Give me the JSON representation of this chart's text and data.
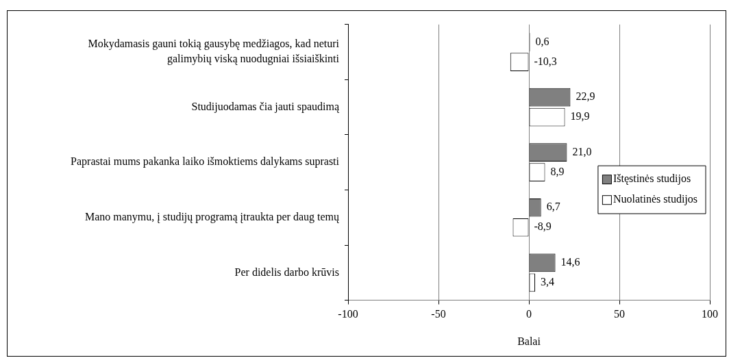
{
  "chart_data": {
    "type": "bar",
    "orientation": "horizontal",
    "xlabel": "Balai",
    "categories": [
      "Mokydamasis gauni tokią gausybę medžiagos, kad neturi galimybių viską nuodugniai išsiaiškinti",
      "Studijuodamas čia jauti spaudimą",
      "Paprastai mums pakanka laiko išmoktiems dalykams suprasti",
      "Mano manymu, į studijų programą įtraukta per daug temų",
      "Per didelis darbo krūvis"
    ],
    "series": [
      {
        "name": "Ištęstinės studijos",
        "color": "#808080",
        "values": [
          0.6,
          22.9,
          21.0,
          6.7,
          14.6
        ],
        "value_labels": [
          "0,6",
          "22,9",
          "21,0",
          "6,7",
          "14,6"
        ]
      },
      {
        "name": "Nuolatinės studijos",
        "color": "#ffffff",
        "values": [
          -10.3,
          19.9,
          8.9,
          -8.9,
          3.4
        ],
        "value_labels": [
          "-10,3",
          "19,9",
          "8,9",
          "-8,9",
          "3,4"
        ]
      }
    ],
    "xlim": [
      -100,
      100
    ],
    "xticks": [
      -100,
      -50,
      0,
      50,
      100
    ],
    "grid": "x",
    "legend": "right"
  }
}
